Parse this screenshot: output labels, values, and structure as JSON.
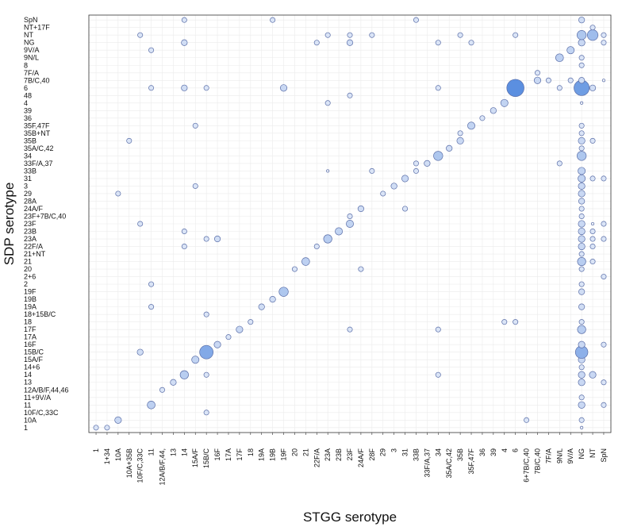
{
  "chart_data": {
    "type": "scatter",
    "xlabel": "STGG serotype",
    "ylabel": "SDP serotype",
    "grid": true,
    "legend": "none",
    "x_categories": [
      "1",
      "1+34",
      "10A",
      "10A+35B",
      "10F/C,33C",
      "11",
      "12A/B/F,44,",
      "13",
      "14",
      "15A/F",
      "15B/C",
      "16F",
      "17A",
      "17F",
      "18",
      "19A",
      "19B",
      "19F",
      "20",
      "21",
      "22F/A",
      "23A",
      "23B",
      "23F",
      "24A/F",
      "28F",
      "29",
      "3",
      "31",
      "33B",
      "33F/A,37",
      "34",
      "35A/C,42",
      "35B",
      "35F,47F",
      "36",
      "39",
      "4",
      "6",
      "6+7B/C,40",
      "7B/C,40",
      "7F/A",
      "9N/L",
      "9V/A",
      "NG",
      "NT",
      "SpN"
    ],
    "y_categories": [
      "1",
      "10A",
      "10F/C,33C",
      "11",
      "11+9V/A",
      "12A/B/F,44,46",
      "13",
      "14",
      "14+6",
      "15A/F",
      "15B/C",
      "16F",
      "17A",
      "17F",
      "18",
      "18+15B/C",
      "19A",
      "19B",
      "19F",
      "2",
      "2+6",
      "20",
      "21",
      "21+NT",
      "22F/A",
      "23A",
      "23B",
      "23F",
      "23F+7B/C,40",
      "24A/F",
      "28A",
      "29",
      "3",
      "31",
      "33B",
      "33F/A,37",
      "34",
      "35A/C,42",
      "35B",
      "35B+NT",
      "35F,47F",
      "36",
      "39",
      "4",
      "48",
      "6",
      "7B/C,40",
      "7F/A",
      "8",
      "9N/L",
      "9V/A",
      "NG",
      "NT",
      "NT+17F",
      "SpN"
    ],
    "color_scale": [
      "#f2f4fa",
      "#5b8fe0"
    ],
    "points": [
      {
        "x": "1",
        "y": "1",
        "count": 1
      },
      {
        "x": "1+34",
        "y": "1",
        "count": 1
      },
      {
        "x": "10A",
        "y": "10A",
        "count": 3
      },
      {
        "x": "10F/C,33C",
        "y": "15B/C",
        "count": 2
      },
      {
        "x": "10F/C,33C",
        "y": "23F",
        "count": 1
      },
      {
        "x": "10F/C,33C",
        "y": "NT",
        "count": 1
      },
      {
        "x": "10A",
        "y": "29",
        "count": 1
      },
      {
        "x": "10A+35B",
        "y": "35B",
        "count": 1
      },
      {
        "x": "11",
        "y": "11",
        "count": 5
      },
      {
        "x": "11",
        "y": "2",
        "count": 1
      },
      {
        "x": "11",
        "y": "19A",
        "count": 1
      },
      {
        "x": "11",
        "y": "6",
        "count": 1
      },
      {
        "x": "11",
        "y": "9V/A",
        "count": 1
      },
      {
        "x": "12A/B/F,44,",
        "y": "12A/B/F,44,46",
        "count": 1
      },
      {
        "x": "13",
        "y": "13",
        "count": 2
      },
      {
        "x": "14",
        "y": "14",
        "count": 6
      },
      {
        "x": "14",
        "y": "23B",
        "count": 1
      },
      {
        "x": "14",
        "y": "22F/A",
        "count": 1
      },
      {
        "x": "14",
        "y": "6",
        "count": 2
      },
      {
        "x": "14",
        "y": "NG",
        "count": 2
      },
      {
        "x": "14",
        "y": "SpN",
        "count": 1
      },
      {
        "x": "15A/F",
        "y": "15A/F",
        "count": 4
      },
      {
        "x": "15A/F",
        "y": "3",
        "count": 1
      },
      {
        "x": "15A/F",
        "y": "35F,47F",
        "count": 1
      },
      {
        "x": "15B/C",
        "y": "15B/C",
        "count": 22
      },
      {
        "x": "15B/C",
        "y": "14",
        "count": 1
      },
      {
        "x": "15B/C",
        "y": "10F/C,33C",
        "count": 1
      },
      {
        "x": "15B/C",
        "y": "18+15B/C",
        "count": 1
      },
      {
        "x": "15B/C",
        "y": "23A",
        "count": 1
      },
      {
        "x": "15B/C",
        "y": "6",
        "count": 1
      },
      {
        "x": "16F",
        "y": "16F",
        "count": 3
      },
      {
        "x": "16F",
        "y": "23A",
        "count": 2
      },
      {
        "x": "17A",
        "y": "17A",
        "count": 1
      },
      {
        "x": "17F",
        "y": "17F",
        "count": 3
      },
      {
        "x": "18",
        "y": "18",
        "count": 1
      },
      {
        "x": "19A",
        "y": "19A",
        "count": 2
      },
      {
        "x": "19B",
        "y": "19B",
        "count": 2
      },
      {
        "x": "19B",
        "y": "SpN",
        "count": 1
      },
      {
        "x": "19F",
        "y": "19F",
        "count": 8
      },
      {
        "x": "19F",
        "y": "6",
        "count": 3
      },
      {
        "x": "20",
        "y": "20",
        "count": 1
      },
      {
        "x": "21",
        "y": "21",
        "count": 5
      },
      {
        "x": "22F/A",
        "y": "22F/A",
        "count": 1
      },
      {
        "x": "22F/A",
        "y": "NG",
        "count": 1
      },
      {
        "x": "23A",
        "y": "23A",
        "count": 6
      },
      {
        "x": "23A",
        "y": "33B",
        "count": 0
      },
      {
        "x": "23A",
        "y": "4",
        "count": 1
      },
      {
        "x": "23A",
        "y": "NT",
        "count": 1
      },
      {
        "x": "23B",
        "y": "23B",
        "count": 4
      },
      {
        "x": "23F",
        "y": "23F",
        "count": 4
      },
      {
        "x": "23F",
        "y": "23F+7B/C,40",
        "count": 1
      },
      {
        "x": "23F",
        "y": "17F",
        "count": 1
      },
      {
        "x": "23F",
        "y": "48",
        "count": 1
      },
      {
        "x": "23F",
        "y": "NG",
        "count": 2
      },
      {
        "x": "23F",
        "y": "NT",
        "count": 1
      },
      {
        "x": "24A/F",
        "y": "24A/F",
        "count": 2
      },
      {
        "x": "24A/F",
        "y": "20",
        "count": 1
      },
      {
        "x": "28F",
        "y": "28F",
        "count": 1
      },
      {
        "x": "28F",
        "y": "33B",
        "count": 1
      },
      {
        "x": "28F",
        "y": "NT",
        "count": 1
      },
      {
        "x": "29",
        "y": "29",
        "count": 1
      },
      {
        "x": "3",
        "y": "3",
        "count": 2
      },
      {
        "x": "31",
        "y": "31",
        "count": 3
      },
      {
        "x": "31",
        "y": "24A/F",
        "count": 1
      },
      {
        "x": "33B",
        "y": "33B",
        "count": 1
      },
      {
        "x": "33B",
        "y": "33F/A,37",
        "count": 1
      },
      {
        "x": "33B",
        "y": "SpN",
        "count": 1
      },
      {
        "x": "33F/A,37",
        "y": "33F/A,37",
        "count": 2
      },
      {
        "x": "34",
        "y": "34",
        "count": 8
      },
      {
        "x": "34",
        "y": "14",
        "count": 1
      },
      {
        "x": "34",
        "y": "17F",
        "count": 1
      },
      {
        "x": "34",
        "y": "6",
        "count": 1
      },
      {
        "x": "34",
        "y": "NG",
        "count": 1
      },
      {
        "x": "35A/C,42",
        "y": "35A/C,42",
        "count": 2
      },
      {
        "x": "35B",
        "y": "35B",
        "count": 3
      },
      {
        "x": "35B",
        "y": "35B+NT",
        "count": 1
      },
      {
        "x": "35B",
        "y": "NT",
        "count": 1
      },
      {
        "x": "35F,47F",
        "y": "35F,47F",
        "count": 4
      },
      {
        "x": "35F,47F",
        "y": "NG",
        "count": 1
      },
      {
        "x": "36",
        "y": "36",
        "count": 1
      },
      {
        "x": "39",
        "y": "39",
        "count": 2
      },
      {
        "x": "4",
        "y": "4",
        "count": 4
      },
      {
        "x": "4",
        "y": "18",
        "count": 1
      },
      {
        "x": "6",
        "y": "6",
        "count": 40
      },
      {
        "x": "6",
        "y": "18",
        "count": 1
      },
      {
        "x": "6",
        "y": "NT",
        "count": 1
      },
      {
        "x": "6+7B/C,40",
        "y": "10A",
        "count": 1
      },
      {
        "x": "7B/C,40",
        "y": "7B/C,40",
        "count": 3
      },
      {
        "x": "7B/C,40",
        "y": "7F/A",
        "count": 1
      },
      {
        "x": "7F/A",
        "y": "7B/C,40",
        "count": 1
      },
      {
        "x": "9N/L",
        "y": "9N/L",
        "count": 5
      },
      {
        "x": "9N/L",
        "y": "6",
        "count": 1
      },
      {
        "x": "9N/L",
        "y": "33F/A,37",
        "count": 1
      },
      {
        "x": "9V/A",
        "y": "9V/A",
        "count": 4
      },
      {
        "x": "9V/A",
        "y": "7B/C,40",
        "count": 1
      },
      {
        "x": "NG",
        "y": "1",
        "count": 0
      },
      {
        "x": "NG",
        "y": "10A",
        "count": 1
      },
      {
        "x": "NG",
        "y": "11",
        "count": 3
      },
      {
        "x": "NG",
        "y": "11+9V/A",
        "count": 1
      },
      {
        "x": "NG",
        "y": "13",
        "count": 3
      },
      {
        "x": "NG",
        "y": "14",
        "count": 3
      },
      {
        "x": "NG",
        "y": "14+6",
        "count": 1
      },
      {
        "x": "NG",
        "y": "15A/F",
        "count": 3
      },
      {
        "x": "NG",
        "y": "15B/C",
        "count": 18
      },
      {
        "x": "NG",
        "y": "16F",
        "count": 3
      },
      {
        "x": "NG",
        "y": "17F",
        "count": 6
      },
      {
        "x": "NG",
        "y": "18",
        "count": 1
      },
      {
        "x": "NG",
        "y": "19A",
        "count": 2
      },
      {
        "x": "NG",
        "y": "19F",
        "count": 2
      },
      {
        "x": "NG",
        "y": "2",
        "count": 1
      },
      {
        "x": "NG",
        "y": "20",
        "count": 1
      },
      {
        "x": "NG",
        "y": "21",
        "count": 6
      },
      {
        "x": "NG",
        "y": "21+NT",
        "count": 1
      },
      {
        "x": "NG",
        "y": "22F/A",
        "count": 3
      },
      {
        "x": "NG",
        "y": "23A",
        "count": 3
      },
      {
        "x": "NG",
        "y": "23B",
        "count": 3
      },
      {
        "x": "NG",
        "y": "23F",
        "count": 3
      },
      {
        "x": "NG",
        "y": "23F+7B/C,40",
        "count": 1
      },
      {
        "x": "NG",
        "y": "24A/F",
        "count": 1
      },
      {
        "x": "NG",
        "y": "28A",
        "count": 2
      },
      {
        "x": "NG",
        "y": "29",
        "count": 3
      },
      {
        "x": "NG",
        "y": "3",
        "count": 3
      },
      {
        "x": "NG",
        "y": "31",
        "count": 4
      },
      {
        "x": "NG",
        "y": "33B",
        "count": 4
      },
      {
        "x": "NG",
        "y": "34",
        "count": 8
      },
      {
        "x": "NG",
        "y": "35A/C,42",
        "count": 1
      },
      {
        "x": "NG",
        "y": "35B",
        "count": 3
      },
      {
        "x": "NG",
        "y": "35B+NT",
        "count": 1
      },
      {
        "x": "NG",
        "y": "35F,47F",
        "count": 1
      },
      {
        "x": "NG",
        "y": "4",
        "count": 0
      },
      {
        "x": "NG",
        "y": "6",
        "count": 30
      },
      {
        "x": "NG",
        "y": "7B/C,40",
        "count": 2
      },
      {
        "x": "NG",
        "y": "8",
        "count": 1
      },
      {
        "x": "NG",
        "y": "9N/L",
        "count": 1
      },
      {
        "x": "NG",
        "y": "NG",
        "count": 3
      },
      {
        "x": "NG",
        "y": "NT",
        "count": 8
      },
      {
        "x": "NG",
        "y": "SpN",
        "count": 2
      },
      {
        "x": "NT",
        "y": "NT",
        "count": 12
      },
      {
        "x": "NT",
        "y": "NT+17F",
        "count": 1
      },
      {
        "x": "NT",
        "y": "14",
        "count": 3
      },
      {
        "x": "NT",
        "y": "21",
        "count": 1
      },
      {
        "x": "NT",
        "y": "22F/A",
        "count": 1
      },
      {
        "x": "NT",
        "y": "23A",
        "count": 1
      },
      {
        "x": "NT",
        "y": "23B",
        "count": 1
      },
      {
        "x": "NT",
        "y": "31",
        "count": 1
      },
      {
        "x": "NT",
        "y": "35B",
        "count": 1
      },
      {
        "x": "NT",
        "y": "6",
        "count": 2
      },
      {
        "x": "NT",
        "y": "23F",
        "count": 0
      },
      {
        "x": "SpN",
        "y": "NT",
        "count": 1
      },
      {
        "x": "SpN",
        "y": "NG",
        "count": 1
      },
      {
        "x": "SpN",
        "y": "23F",
        "count": 1
      },
      {
        "x": "SpN",
        "y": "23A",
        "count": 1
      },
      {
        "x": "SpN",
        "y": "16F",
        "count": 1
      },
      {
        "x": "SpN",
        "y": "13",
        "count": 1
      },
      {
        "x": "SpN",
        "y": "11",
        "count": 1
      },
      {
        "x": "SpN",
        "y": "31",
        "count": 1
      },
      {
        "x": "SpN",
        "y": "2+6",
        "count": 1
      },
      {
        "x": "SpN",
        "y": "7B/C,40",
        "count": 0
      }
    ]
  }
}
